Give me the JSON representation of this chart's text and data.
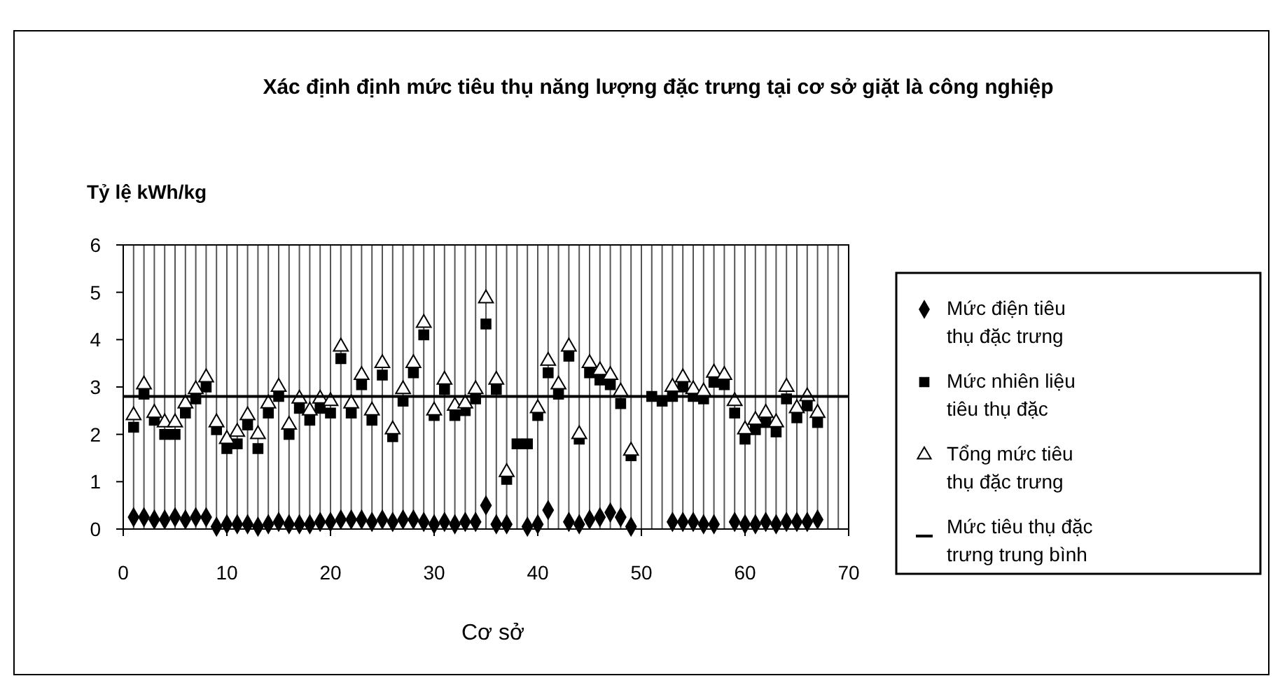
{
  "chart_data": {
    "type": "scatter",
    "title": "Xác định định mức tiêu thụ năng lượng đặc trưng tại cơ sở giặt là công nghiệp",
    "xlabel": "Cơ sở",
    "ylabel": "Tỷ lệ kWh/kg",
    "xlim": [
      0,
      70
    ],
    "ylim": [
      0,
      6
    ],
    "yticks": [
      0,
      1,
      2,
      3,
      4,
      5,
      6
    ],
    "xticks": [
      0,
      {
        "value": 1,
        "label": null
      },
      {
        "value": 2,
        "label": null
      },
      {
        "value": 3,
        "label": null
      },
      {
        "value": 4,
        "label": null
      },
      {
        "value": 5,
        "label": null
      },
      {
        "value": 6,
        "label": null
      },
      {
        "value": 7,
        "label": null
      },
      {
        "value": 8,
        "label": null
      },
      {
        "value": 9,
        "label": null
      },
      10,
      {
        "value": 11,
        "label": null
      },
      {
        "value": 12,
        "label": null
      },
      {
        "value": 13,
        "label": null
      },
      {
        "value": 14,
        "label": null
      },
      {
        "value": 15,
        "label": null
      },
      {
        "value": 16,
        "label": null
      },
      {
        "value": 17,
        "label": null
      },
      {
        "value": 18,
        "label": null
      },
      {
        "value": 19,
        "label": null
      },
      20,
      {
        "value": 21,
        "label": null
      },
      {
        "value": 22,
        "label": null
      },
      {
        "value": 23,
        "label": null
      },
      {
        "value": 24,
        "label": null
      },
      {
        "value": 25,
        "label": null
      },
      {
        "value": 26,
        "label": null
      },
      {
        "value": 27,
        "label": null
      },
      {
        "value": 28,
        "label": null
      },
      {
        "value": 29,
        "label": null
      },
      30,
      {
        "value": 31,
        "label": null
      },
      {
        "value": 32,
        "label": null
      },
      {
        "value": 33,
        "label": null
      },
      {
        "value": 34,
        "label": null
      },
      {
        "value": 35,
        "label": null
      },
      {
        "value": 36,
        "label": null
      },
      {
        "value": 37,
        "label": null
      },
      {
        "value": 38,
        "label": null
      },
      {
        "value": 39,
        "label": null
      },
      40,
      {
        "value": 41,
        "label": null
      },
      {
        "value": 42,
        "label": null
      },
      {
        "value": 43,
        "label": null
      },
      {
        "value": 44,
        "label": null
      },
      {
        "value": 45,
        "label": null
      },
      {
        "value": 46,
        "label": null
      },
      {
        "value": 47,
        "label": null
      },
      {
        "value": 48,
        "label": null
      },
      {
        "value": 49,
        "label": null
      },
      50,
      {
        "value": 51,
        "label": null
      },
      {
        "value": 52,
        "label": null
      },
      {
        "value": 53,
        "label": null
      },
      {
        "value": 54,
        "label": null
      },
      {
        "value": 55,
        "label": null
      },
      {
        "value": 56,
        "label": null
      },
      {
        "value": 57,
        "label": null
      },
      {
        "value": 58,
        "label": null
      },
      {
        "value": 59,
        "label": null
      },
      60,
      {
        "value": 61,
        "label": null
      },
      {
        "value": 62,
        "label": null
      },
      {
        "value": 63,
        "label": null
      },
      {
        "value": 64,
        "label": null
      },
      {
        "value": 65,
        "label": null
      },
      {
        "value": 66,
        "label": null
      },
      {
        "value": 67,
        "label": null
      },
      {
        "value": 68,
        "label": null
      },
      {
        "value": 69,
        "label": null
      },
      70
    ],
    "grid": "x",
    "legend": "right",
    "x": [
      1,
      2,
      3,
      4,
      5,
      6,
      7,
      8,
      9,
      10,
      11,
      12,
      13,
      14,
      15,
      16,
      17,
      18,
      19,
      20,
      21,
      22,
      23,
      24,
      25,
      26,
      27,
      28,
      29,
      30,
      31,
      32,
      33,
      34,
      35,
      36,
      37,
      38,
      39,
      40,
      41,
      42,
      43,
      44,
      45,
      46,
      47,
      48,
      49,
      51,
      52,
      53,
      54,
      55,
      56,
      57,
      58,
      59,
      60,
      61,
      62,
      63,
      64,
      65,
      66,
      67
    ],
    "series": [
      {
        "name": "Mức điện tiêu thụ đặc trưng",
        "color": "#000000",
        "marker": "diamond",
        "values": [
          0.25,
          0.25,
          0.2,
          0.2,
          0.25,
          0.2,
          0.25,
          0.25,
          0.05,
          0.1,
          0.1,
          0.1,
          0.05,
          0.1,
          0.15,
          0.1,
          0.1,
          0.1,
          0.15,
          0.15,
          0.2,
          0.2,
          0.2,
          0.15,
          0.2,
          0.15,
          0.2,
          0.2,
          0.15,
          0.1,
          0.15,
          0.1,
          0.15,
          0.15,
          0.5,
          0.1,
          0.1,
          null,
          0.05,
          0.1,
          0.4,
          null,
          0.15,
          0.1,
          0.2,
          0.25,
          0.35,
          0.25,
          0.05,
          null,
          null,
          0.15,
          0.15,
          0.15,
          0.1,
          0.1,
          null,
          0.15,
          0.1,
          0.1,
          0.15,
          0.1,
          0.15,
          0.15,
          0.15,
          0.2
        ]
      },
      {
        "name": "Mức nhiên liệu tiêu thụ đặc",
        "color": "#000000",
        "marker": "square",
        "values": [
          2.15,
          2.85,
          2.3,
          2.0,
          2.0,
          2.45,
          2.75,
          3.0,
          2.1,
          1.7,
          1.8,
          2.2,
          1.7,
          2.45,
          2.8,
          2.0,
          2.55,
          2.3,
          2.55,
          2.45,
          3.6,
          2.45,
          3.05,
          2.3,
          3.25,
          1.95,
          2.7,
          3.3,
          4.1,
          2.4,
          2.95,
          2.4,
          2.5,
          2.75,
          4.33,
          2.95,
          1.05,
          1.8,
          1.8,
          2.4,
          3.3,
          2.85,
          3.65,
          1.9,
          3.3,
          3.15,
          3.05,
          2.65,
          1.55,
          2.8,
          2.7,
          2.8,
          3.0,
          2.8,
          2.75,
          3.1,
          3.05,
          2.45,
          1.9,
          2.1,
          2.25,
          2.05,
          2.75,
          2.35,
          2.6,
          2.25
        ]
      },
      {
        "name": "Tổng mức tiêu thụ đặc trưng",
        "color": "#ffffff",
        "marker": "triangle",
        "values": [
          2.4,
          3.05,
          2.45,
          2.25,
          2.25,
          2.65,
          2.95,
          3.2,
          2.25,
          1.9,
          2.05,
          2.4,
          2.0,
          2.65,
          3.0,
          2.2,
          2.75,
          2.5,
          2.75,
          2.7,
          3.85,
          2.65,
          3.25,
          2.5,
          3.5,
          2.1,
          2.95,
          3.5,
          4.35,
          2.5,
          3.15,
          2.6,
          2.65,
          2.95,
          4.87,
          3.15,
          1.2,
          null,
          null,
          2.55,
          3.55,
          3.05,
          3.85,
          2.0,
          3.5,
          3.35,
          3.25,
          2.9,
          1.65,
          null,
          null,
          3.0,
          3.2,
          2.95,
          2.9,
          3.3,
          3.25,
          2.7,
          2.1,
          2.3,
          2.45,
          2.25,
          3.0,
          2.55,
          2.8,
          2.45
        ]
      },
      {
        "name": "Mức tiêu thụ đặc trưng trung bình",
        "type": "line",
        "color": "#000000",
        "marker": "none",
        "x": [
          0,
          70
        ],
        "values": [
          2.8,
          2.8
        ]
      }
    ]
  }
}
